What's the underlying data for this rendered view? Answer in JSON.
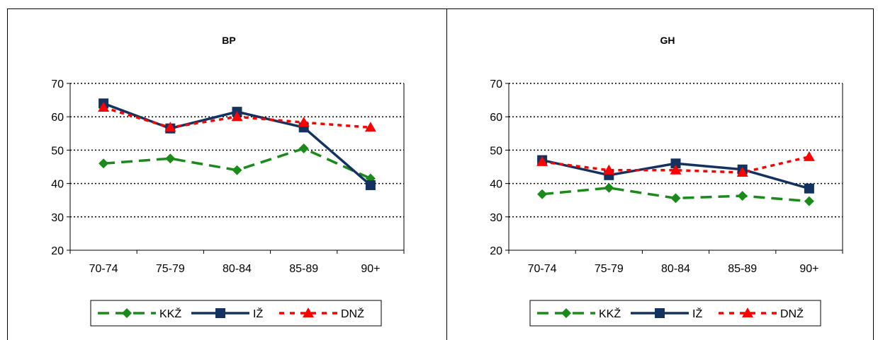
{
  "chart_data": [
    {
      "type": "line",
      "title": "BP",
      "categories": [
        "70-74",
        "75-79",
        "80-84",
        "85-89",
        "90+"
      ],
      "ylim": [
        20,
        70
      ],
      "yticks": [
        20,
        30,
        40,
        50,
        60,
        70
      ],
      "grid": true,
      "legend_position": "bottom",
      "series": [
        {
          "name": "KKŽ",
          "values": [
            46,
            47.5,
            44,
            50.5,
            41.5
          ],
          "color": "#1a8a1a",
          "style": "long-dash",
          "marker": "diamond-icon"
        },
        {
          "name": "IŽ",
          "values": [
            64,
            56.5,
            61.5,
            56.8,
            39.5
          ],
          "color": "#13325f",
          "style": "solid",
          "marker": "square-icon"
        },
        {
          "name": "DNŽ",
          "values": [
            62.8,
            56.8,
            60,
            58.3,
            56.8
          ],
          "color": "#ff0000",
          "style": "short-dash",
          "marker": "triangle-icon"
        }
      ]
    },
    {
      "type": "line",
      "title": "GH",
      "categories": [
        "70-74",
        "75-79",
        "80-84",
        "85-89",
        "90+"
      ],
      "ylim": [
        20,
        70
      ],
      "yticks": [
        20,
        30,
        40,
        50,
        60,
        70
      ],
      "grid": true,
      "legend_position": "bottom",
      "series": [
        {
          "name": "KKŽ",
          "values": [
            36.8,
            38.7,
            35.6,
            36.3,
            34.7
          ],
          "color": "#1a8a1a",
          "style": "long-dash",
          "marker": "diamond-icon"
        },
        {
          "name": "IŽ",
          "values": [
            47,
            42.5,
            46,
            44.2,
            38.5
          ],
          "color": "#13325f",
          "style": "solid",
          "marker": "square-icon"
        },
        {
          "name": "DNŽ",
          "values": [
            46.5,
            44,
            44,
            43.3,
            48
          ],
          "color": "#ff0000",
          "style": "short-dash",
          "marker": "triangle-icon"
        }
      ]
    }
  ]
}
